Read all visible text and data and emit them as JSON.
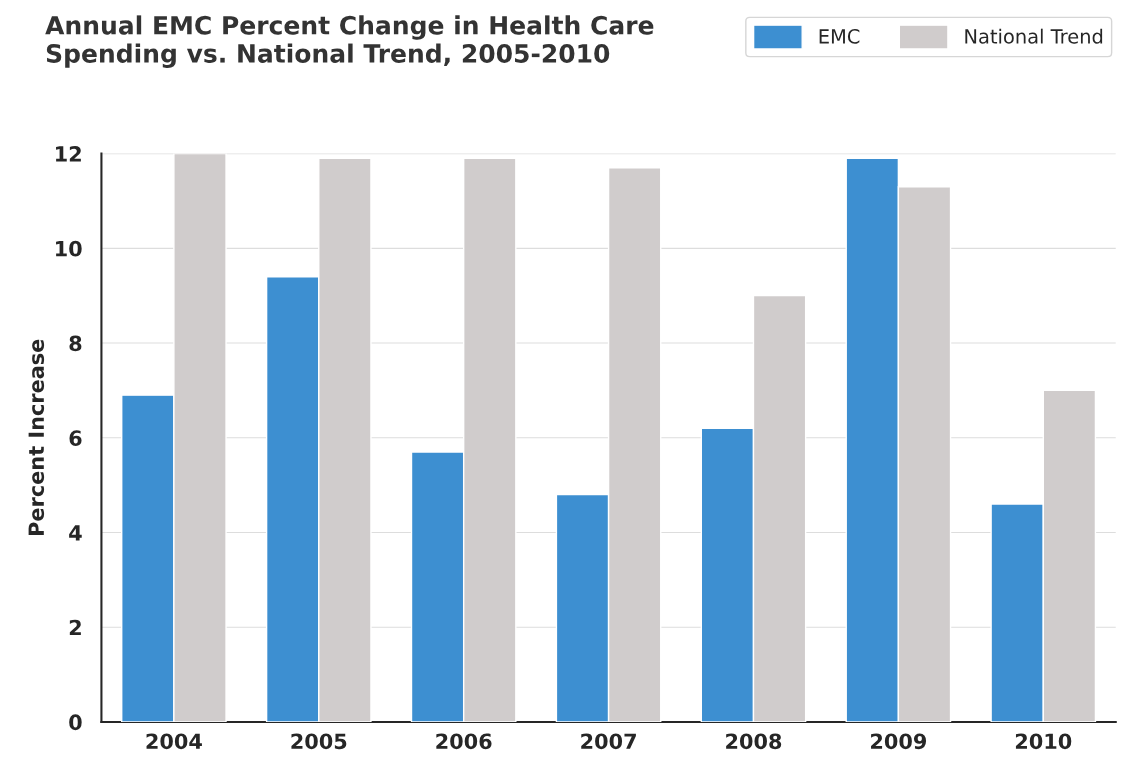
{
  "chart_data": {
    "type": "bar",
    "title": "Annual EMC Percent Change in Health Care\nSpending vs. National Trend, 2005-2010",
    "ylabel": "Percent Increase",
    "categories": [
      "2004",
      "2005",
      "2006",
      "2007",
      "2008",
      "2009",
      "2010"
    ],
    "series": [
      {
        "name": "EMC",
        "color": "#3d8fd1",
        "values": [
          6.9,
          9.4,
          5.7,
          4.8,
          6.2,
          11.9,
          4.6
        ]
      },
      {
        "name": "National Trend",
        "color": "#d0cccc",
        "values": [
          12.0,
          11.9,
          11.9,
          11.7,
          9.0,
          11.3,
          7.0
        ]
      }
    ],
    "ylim": [
      0,
      12
    ],
    "yticks": [
      0,
      2,
      4,
      6,
      8,
      10,
      12
    ],
    "grid": "y",
    "legend": "top right"
  }
}
